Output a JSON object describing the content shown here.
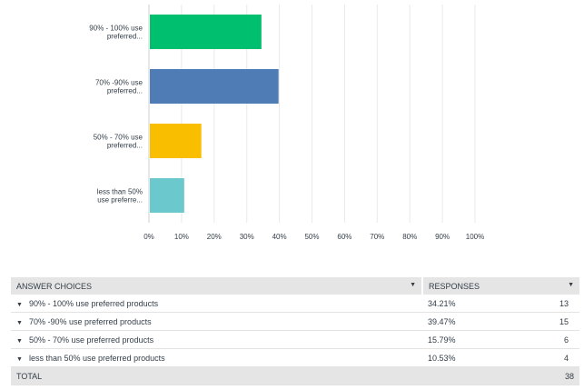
{
  "chart_data": {
    "type": "bar",
    "orientation": "horizontal",
    "categories": [
      [
        "90% - 100% use",
        "preferred..."
      ],
      [
        "70% -90% use",
        "preferred..."
      ],
      [
        "50% - 70% use",
        "preferred..."
      ],
      [
        "less than 50%",
        "use preferre..."
      ]
    ],
    "values": [
      34.21,
      39.47,
      15.79,
      10.53
    ],
    "colors": [
      "#00bf6f",
      "#507cb6",
      "#f9be00",
      "#6bc8cd"
    ],
    "xlim": [
      0,
      100
    ],
    "xticks": [
      "0%",
      "10%",
      "20%",
      "30%",
      "40%",
      "50%",
      "60%",
      "70%",
      "80%",
      "90%",
      "100%"
    ],
    "grid": true
  },
  "table": {
    "headers": {
      "answer": "ANSWER CHOICES",
      "responses": "RESPONSES"
    },
    "caret": "▼",
    "rows": [
      {
        "label": "90% - 100% use preferred products",
        "percent": "34.21%",
        "count": "13"
      },
      {
        "label": "70% -90% use preferred products",
        "percent": "39.47%",
        "count": "15"
      },
      {
        "label": "50% - 70% use preferred products",
        "percent": "15.79%",
        "count": "6"
      },
      {
        "label": "less than 50% use preferred products",
        "percent": "10.53%",
        "count": "4"
      }
    ],
    "total_label": "TOTAL",
    "total_count": "38"
  }
}
